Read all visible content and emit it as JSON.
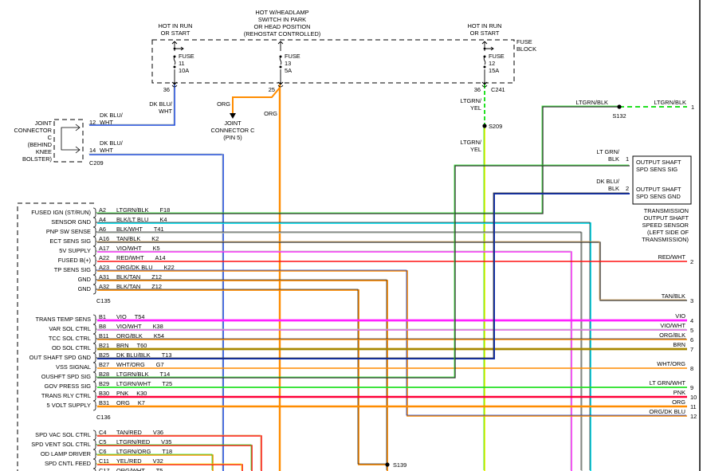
{
  "fuse_block": {
    "label": [
      "FUSE",
      "BLOCK"
    ],
    "fuses": [
      {
        "hot": [
          "HOT IN RUN",
          "OR START"
        ],
        "name": "FUSE",
        "number": "11",
        "rating": "10A",
        "cavity": "36"
      },
      {
        "hot": [
          "HOT W/HEADLAMP",
          "SWITCH IN PARK",
          "OR HEAD POSITION",
          "(REHOSTAT CONTROLLED)"
        ],
        "name": "FUSE",
        "number": "13",
        "rating": "5A",
        "cavity": "25"
      },
      {
        "hot": [
          "HOT IN RUN",
          "OR START"
        ],
        "name": "FUSE",
        "number": "12",
        "rating": "15A",
        "cavity": "36",
        "connector": "C241"
      }
    ]
  },
  "joint_connector": {
    "label": [
      "JOINT",
      "CONNECTOR",
      "C",
      "(BEHIND",
      "KNEE",
      "BOLSTER)"
    ],
    "pins": [
      {
        "pin": "12",
        "wire": [
          "DK BLU/",
          "WHT"
        ]
      },
      {
        "pin": "14",
        "wire": [
          "DK BLU/",
          "WHT"
        ]
      }
    ],
    "connector": "C209"
  },
  "top_wires": {
    "fuse11_wire": [
      "DK BLU/",
      "WHT"
    ],
    "fuse13_branch_wire": "ORG",
    "fuse13_wire": "ORG",
    "joint_c_pins": [
      "JOINT",
      "CONNECTOR C",
      "(PIN 5)"
    ],
    "fuse12_wire_upper": [
      "LTGRN/",
      "YEL"
    ],
    "splice_s209": "S209",
    "fuse12_wire_lower": [
      "LTGRN/",
      "YEL"
    ],
    "sensor_feed_wire_left": "LTGRN/BLK",
    "splice_s132": "S132",
    "sensor_feed_wire_right": "LTGRN/BLK",
    "sensor_feed_terminal": "1"
  },
  "sensor": {
    "pins": [
      {
        "pin": "1",
        "wire": [
          "LT GRN/",
          "BLK"
        ],
        "function": [
          "OUTPUT SHAFT",
          "SPD SENS SIG"
        ]
      },
      {
        "pin": "2",
        "wire": [
          "DK BLU/",
          "BLK"
        ],
        "function": [
          "OUTPUT SHAFT",
          "SPD SENS GND"
        ]
      }
    ],
    "title": [
      "TRANSMISSION",
      "OUTPUT SHAFT",
      "SPEED SENSOR",
      "(LEFT SIDE OF",
      "TRANSMISSION)"
    ]
  },
  "module_connectors": [
    "C135",
    "C136"
  ],
  "left_pins": [
    {
      "label": "FUSED IGN (ST/RUN)",
      "pin": "A2",
      "wire": "LTGRN/BLK",
      "circuit": "F18"
    },
    {
      "label": "SENSOR GND",
      "pin": "A4",
      "wire": "BLK/LT BLU",
      "circuit": "K4"
    },
    {
      "label": "PNP SW SENSE",
      "pin": "A6",
      "wire": "BLK/WHT",
      "circuit": "T41"
    },
    {
      "label": "ECT SENS SIG",
      "pin": "A16",
      "wire": "TAN/BLK",
      "circuit": "K2"
    },
    {
      "label": "5V SUPPLY",
      "pin": "A17",
      "wire": "VIO/WHT",
      "circuit": "K5"
    },
    {
      "label": "FUSED B(+)",
      "pin": "A22",
      "wire": "RED/WHT",
      "circuit": "A14"
    },
    {
      "label": "TP SENS SIG",
      "pin": "A23",
      "wire": "ORG/DK BLU",
      "circuit": "K22"
    },
    {
      "label": "GND",
      "pin": "A31",
      "wire": "BLK/TAN",
      "circuit": "Z12"
    },
    {
      "label": "GND",
      "pin": "A32",
      "wire": "BLK/TAN",
      "circuit": "Z12"
    },
    {
      "label": "TRANS TEMP SENS",
      "pin": "B1",
      "wire": "VIO",
      "circuit": "T54"
    },
    {
      "label": "VAR SOL CTRL",
      "pin": "B8",
      "wire": "VIO/WHT",
      "circuit": "K38"
    },
    {
      "label": "TCC SOL CTRL",
      "pin": "B11",
      "wire": "ORG/BLK",
      "circuit": "K54"
    },
    {
      "label": "OD SOL CTRL",
      "pin": "B21",
      "wire": "BRN",
      "circuit": "T60"
    },
    {
      "label": "OUT SHAFT SPD GND",
      "pin": "B25",
      "wire": "DK BLU/BLK",
      "circuit": "T13"
    },
    {
      "label": "VSS SIGNAL",
      "pin": "B27",
      "wire": "WHT/ORG",
      "circuit": "G7"
    },
    {
      "label": "OUSHFT SPD SIG",
      "pin": "B28",
      "wire": "LTGRN/BLK",
      "circuit": "T14"
    },
    {
      "label": "GOV PRESS SIG",
      "pin": "B29",
      "wire": "LTGRN/WHT",
      "circuit": "T25"
    },
    {
      "label": "TRANS RLY CTRL",
      "pin": "B30",
      "wire": "PNK",
      "circuit": "K30"
    },
    {
      "label": "5 VOLT SUPPLY",
      "pin": "B31",
      "wire": "ORG",
      "circuit": "K7"
    },
    {
      "label": "SPD VAC SOL CTRL",
      "pin": "C4",
      "wire": "TAN/RED",
      "circuit": "V36"
    },
    {
      "label": "SPD VENT SOL CTRL",
      "pin": "C5",
      "wire": "LTGRN/RED",
      "circuit": "V35"
    },
    {
      "label": "OD LAMP DRIVER",
      "pin": "C6",
      "wire": "LTGRN/ORG",
      "circuit": "T18"
    },
    {
      "label": "SPD CNTL FEED",
      "pin": "C11",
      "wire": "YEL/RED",
      "circuit": "V32"
    },
    {
      "label": "",
      "pin": "C17",
      "wire": "ORG/WHT",
      "circuit": "T5"
    }
  ],
  "right_terminals": [
    {
      "wire": "RED/WHT",
      "num": "2"
    },
    {
      "wire": "TAN/BLK",
      "num": "3"
    },
    {
      "wire": "VIO",
      "num": "4"
    },
    {
      "wire": "VIO/WHT",
      "num": "5"
    },
    {
      "wire": "ORG/BLK",
      "num": "6"
    },
    {
      "wire": "BRN",
      "num": "7"
    },
    {
      "wire": "WHT/ORG",
      "num": "8"
    },
    {
      "wire": "LT GRN/WHT",
      "num": "9"
    },
    {
      "wire": "PNK",
      "num": "10"
    },
    {
      "wire": "ORG",
      "num": "11"
    },
    {
      "wire": "ORG/DK BLU",
      "num": "12"
    }
  ],
  "splice_s139": "S139",
  "wire_colors": {
    "black": "#303030",
    "lt_green": "#22e022",
    "cyan": "#00e0f0",
    "gray": "#b8c0b8",
    "tan": "#d8a860",
    "violet": "#ff20ff",
    "violet_light": "#e060e0",
    "red": "#ff1010",
    "orange": "#ff8c00",
    "dk_blue": "#1030b0",
    "blue": "#1040e0",
    "brown": "#a88800",
    "pink": "#ff0038",
    "yellow": "#f0f000"
  }
}
